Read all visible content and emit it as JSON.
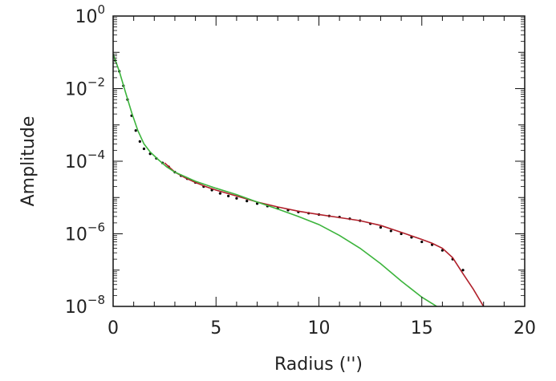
{
  "chart_data": {
    "type": "scatter",
    "title": "",
    "xlabel": "Radius ('')",
    "ylabel": "Amplitude",
    "xlim": [
      0,
      20
    ],
    "ylim": [
      1e-08,
      1
    ],
    "yscale": "log",
    "grid": false,
    "x_ticks": [
      {
        "value": 0,
        "label": "0"
      },
      {
        "value": 5,
        "label": "5"
      },
      {
        "value": 10,
        "label": "10"
      },
      {
        "value": 15,
        "label": "15"
      },
      {
        "value": 20,
        "label": "20"
      }
    ],
    "y_ticks": [
      {
        "value": 1e-08,
        "base": "10",
        "exp": "−8"
      },
      {
        "value": 1e-06,
        "base": "10",
        "exp": "−6"
      },
      {
        "value": 0.0001,
        "base": "10",
        "exp": "−4"
      },
      {
        "value": 0.01,
        "base": "10",
        "exp": "−2"
      },
      {
        "value": 1,
        "base": "10",
        "exp": "0"
      }
    ],
    "colors": {
      "points": "#000000",
      "red_curve": "#b0202a",
      "green_curve": "#3cb43c"
    },
    "series": [
      {
        "kind": "points",
        "color": "#000000",
        "x": [
          0.1,
          0.3,
          0.5,
          0.7,
          0.9,
          1.1,
          1.3,
          1.5,
          1.8,
          2.1,
          2.4,
          2.7,
          3.0,
          3.3,
          3.6,
          4.0,
          4.4,
          4.8,
          5.2,
          5.6,
          6.0,
          6.5,
          7.0,
          7.5,
          8.0,
          8.5,
          9.0,
          9.5,
          10.0,
          10.5,
          11.0,
          11.5,
          12.0,
          12.5,
          13.0,
          13.5,
          14.0,
          14.5,
          15.0,
          15.5,
          16.0,
          16.5,
          17.0
        ],
        "y": [
          0.06,
          0.03,
          0.012,
          0.005,
          0.0018,
          0.0007,
          0.00035,
          0.00022,
          0.00016,
          0.00012,
          9e-05,
          7e-05,
          5e-05,
          4e-05,
          3.3e-05,
          2.6e-05,
          2e-05,
          1.6e-05,
          1.3e-05,
          1.1e-05,
          9.5e-06,
          8e-06,
          6.8e-06,
          5.8e-06,
          5e-06,
          4.5e-06,
          4e-06,
          3.7e-06,
          3.4e-06,
          3.1e-06,
          2.9e-06,
          2.6e-06,
          2.3e-06,
          1.9e-06,
          1.5e-06,
          1.2e-06,
          1e-06,
          8e-07,
          6e-07,
          5e-07,
          3.5e-07,
          2e-07,
          1e-07
        ]
      },
      {
        "kind": "curve",
        "color": "#b0202a",
        "x": [
          2.5,
          3.0,
          3.5,
          4.0,
          4.5,
          5.0,
          6.0,
          7.0,
          8.0,
          9.0,
          10.0,
          11.0,
          12.0,
          13.0,
          14.0,
          15.0,
          15.5,
          16.0,
          16.5,
          17.0,
          17.5,
          18.0
        ],
        "y": [
          9e-05,
          5e-05,
          3.5e-05,
          2.6e-05,
          2e-05,
          1.6e-05,
          1.1e-05,
          7.5e-06,
          5.5e-06,
          4.2e-06,
          3.4e-06,
          2.8e-06,
          2.3e-06,
          1.7e-06,
          1.1e-06,
          7e-07,
          5.5e-07,
          4e-07,
          2.2e-07,
          8e-08,
          3e-08,
          1e-08
        ]
      },
      {
        "kind": "curve",
        "color": "#3cb43c",
        "x": [
          0.0,
          0.3,
          0.6,
          0.9,
          1.2,
          1.5,
          1.8,
          2.2,
          2.6,
          3.0,
          4.0,
          5.0,
          6.0,
          7.0,
          8.0,
          9.0,
          10.0,
          11.0,
          12.0,
          13.0,
          14.0,
          15.0,
          16.0
        ],
        "y": [
          0.09,
          0.03,
          0.008,
          0.0022,
          0.0007,
          0.0003,
          0.00018,
          0.00011,
          7e-05,
          5e-05,
          2.8e-05,
          1.8e-05,
          1.2e-05,
          7.5e-06,
          4.8e-06,
          3e-06,
          1.8e-06,
          9e-07,
          4e-07,
          1.5e-07,
          5e-08,
          1.8e-08,
          8e-09
        ]
      }
    ]
  }
}
